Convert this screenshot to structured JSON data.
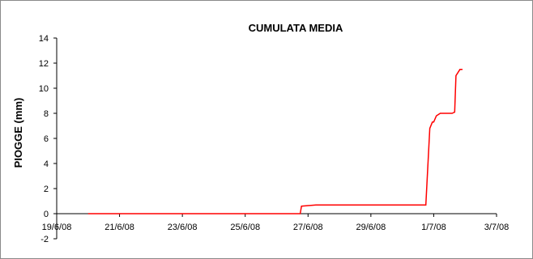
{
  "chart_data": {
    "type": "line",
    "title": "CUMULATA MEDIA",
    "xlabel": "",
    "ylabel": "PIOGGE (mm)",
    "ylim": [
      -2,
      14
    ],
    "yticks": [
      {
        "value": 14,
        "label": "14"
      },
      {
        "value": 12,
        "label": "12"
      },
      {
        "value": 10,
        "label": "10"
      },
      {
        "value": 8,
        "label": "8"
      },
      {
        "value": 6,
        "label": "6"
      },
      {
        "value": 4,
        "label": "4"
      },
      {
        "value": 2,
        "label": "2"
      },
      {
        "value": 0,
        "label": "0"
      },
      {
        "value": -2,
        "label": "-2"
      }
    ],
    "xlim": [
      "2008-06-19",
      "2008-07-03"
    ],
    "xticks": [
      {
        "date": "2008-06-19",
        "label": "19/6/08"
      },
      {
        "date": "2008-06-21",
        "label": "21/6/08"
      },
      {
        "date": "2008-06-23",
        "label": "23/6/08"
      },
      {
        "date": "2008-06-25",
        "label": "25/6/08"
      },
      {
        "date": "2008-06-27",
        "label": "27/6/08"
      },
      {
        "date": "2008-06-29",
        "label": "29/6/08"
      },
      {
        "date": "2008-07-01",
        "label": "1/7/08"
      },
      {
        "date": "2008-07-03",
        "label": "3/7/08"
      }
    ],
    "grid": false,
    "legend": "none",
    "line_color": "#ff0000",
    "series": [
      {
        "x": [
          "2008-06-20 00:00",
          "2008-06-26 18:00",
          "2008-06-26 19:00",
          "2008-06-27 06:00",
          "2008-06-30 18:00",
          "2008-06-30 21:00",
          "2008-06-30 23:00",
          "2008-07-01 00:00",
          "2008-07-01 02:00",
          "2008-07-01 05:00",
          "2008-07-01 14:00",
          "2008-07-01 16:00",
          "2008-07-01 17:00",
          "2008-07-01 20:00",
          "2008-07-01 22:00"
        ],
        "y": [
          0,
          0,
          0.6,
          0.7,
          0.7,
          6.8,
          7.3,
          7.3,
          7.8,
          8.0,
          8.0,
          8.1,
          11.0,
          11.5,
          11.5
        ]
      }
    ]
  }
}
